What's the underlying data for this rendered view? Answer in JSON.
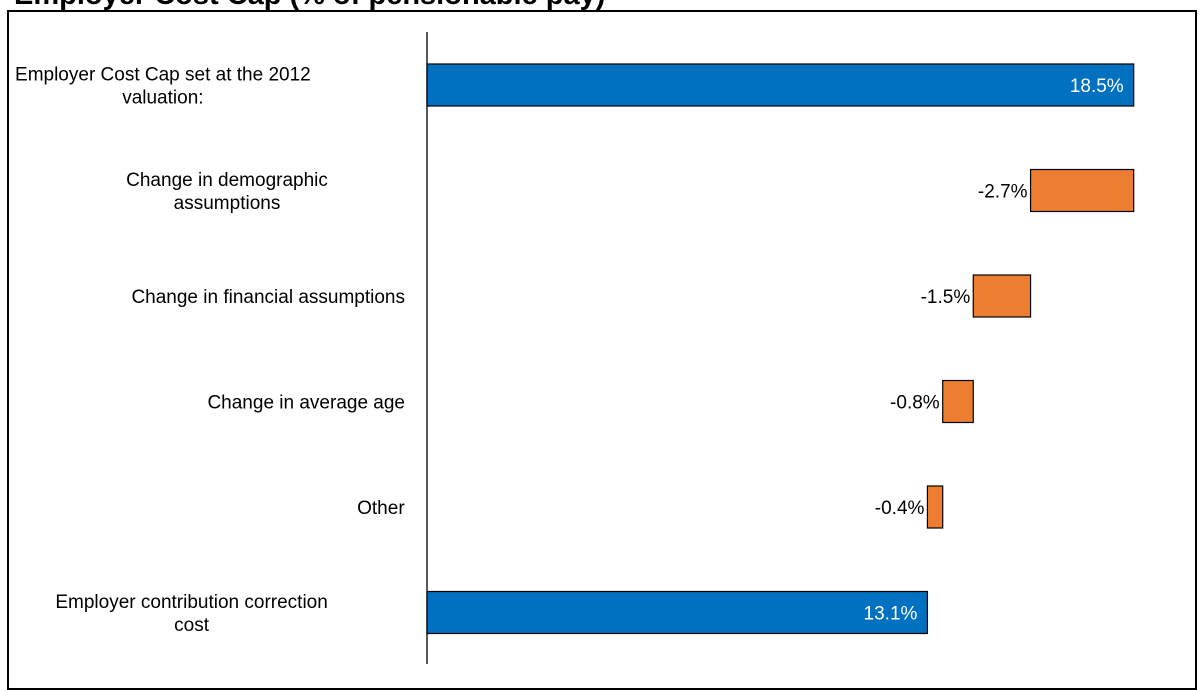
{
  "title": "Employer Cost Cap (% of pensionable pay)",
  "colors": {
    "total": "#0070c0",
    "decrease": "#ed7d31",
    "outline": "#000000",
    "inside_label": "#ffffff",
    "outside_label": "#000000"
  },
  "chart_data": {
    "type": "bar",
    "subtype": "horizontal-waterfall",
    "title": "Employer Cost Cap (% of pensionable pay)",
    "categories": [
      [
        "Employer Cost Cap set at the 2012",
        "valuation:"
      ],
      [
        "Change in demographic",
        "assumptions"
      ],
      [
        "Change in financial assumptions"
      ],
      [
        "Change in average age"
      ],
      [
        "Other"
      ],
      [
        "Employer contribution correction",
        "cost"
      ]
    ],
    "values": [
      18.5,
      -2.7,
      -1.5,
      -0.8,
      -0.4,
      13.1
    ],
    "bar_kind": [
      "total",
      "decrease",
      "decrease",
      "decrease",
      "decrease",
      "total"
    ],
    "data_labels": [
      "18.5%",
      "-2.7%",
      "-1.5%",
      "-0.8%",
      "-0.4%",
      "13.1%"
    ],
    "xlim": [
      0,
      19.5
    ],
    "grid": false,
    "legend": "none"
  }
}
